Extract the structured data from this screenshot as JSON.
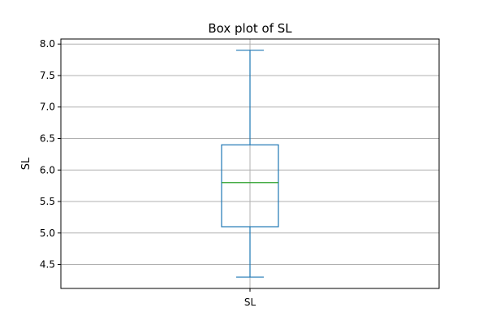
{
  "chart_data": {
    "type": "box",
    "title": "Box plot of SL",
    "xlabel": "",
    "ylabel": "SL",
    "categories": [
      "SL"
    ],
    "boxes": [
      {
        "name": "SL",
        "whisker_low": 4.3,
        "q1": 5.1,
        "median": 5.8,
        "q3": 6.4,
        "whisker_high": 7.9
      }
    ],
    "ylim": [
      4.12,
      8.08
    ],
    "yticks": [
      4.5,
      5.0,
      5.5,
      6.0,
      6.5,
      7.0,
      7.5,
      8.0
    ],
    "ytick_labels": [
      "4.5",
      "5.0",
      "5.5",
      "6.0",
      "6.5",
      "7.0",
      "7.5",
      "8.0"
    ],
    "grid": true,
    "colors": {
      "box": "#1f77b4",
      "median": "#2ca02c",
      "grid": "#b0b0b0",
      "axes": "#000000"
    }
  }
}
